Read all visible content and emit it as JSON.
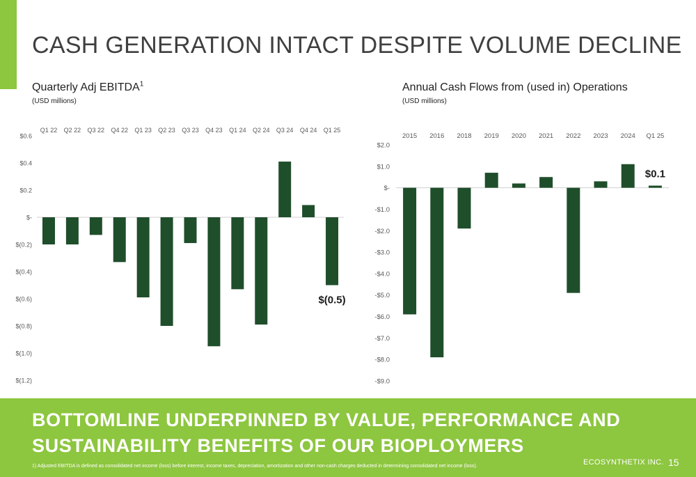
{
  "page": {
    "title": "CASH GENERATION INTACT DESPITE VOLUME DECLINE",
    "accent_color": "#8dc63f",
    "bar_color": "#1f4e2b"
  },
  "left_chart": {
    "heading": "Quarterly Adj EBITDA",
    "heading_footnote_mark": "1",
    "subheading": "(USD millions)"
  },
  "right_chart": {
    "heading": "Annual Cash Flows from (used in) Operations",
    "subheading": "(USD millions)"
  },
  "banner": {
    "line1": "BOTTOMLINE UNDERPINNED BY VALUE, PERFORMANCE AND",
    "line2": "SUSTAINABILITY BENEFITS OF OUR BIOPLOYMERS",
    "footnote": "1) Adjusted EBITDA is defined as consolidated net income (loss) before interest, income taxes, depreciation, amortization and other non-cash charges deducted in determining consolidated net income (loss).",
    "company": "ECOSYNTHETIX INC.",
    "page_number": "15"
  },
  "chart_data": [
    {
      "type": "bar",
      "title": "Quarterly Adj EBITDA",
      "subtitle": "(USD millions)",
      "categories": [
        "Q1 22",
        "Q2 22",
        "Q3 22",
        "Q4 22",
        "Q1 23",
        "Q2 23",
        "Q3 23",
        "Q4 23",
        "Q1 24",
        "Q2 24",
        "Q3 24",
        "Q4 24",
        "Q1 25"
      ],
      "values": [
        -0.2,
        -0.2,
        -0.13,
        -0.33,
        -0.59,
        -0.8,
        -0.19,
        -0.95,
        -0.53,
        -0.79,
        0.41,
        0.09,
        -0.5
      ],
      "ylim": [
        -1.2,
        0.6
      ],
      "yticks": [
        0.6,
        0.4,
        0.2,
        0,
        -0.2,
        -0.4,
        -0.6,
        -0.8,
        -1.0,
        -1.2
      ],
      "ytick_labels": [
        "$0.6",
        "$0.4",
        "$0.2",
        "$-",
        "$(0.2)",
        "$(0.4)",
        "$(0.6)",
        "$(0.8)",
        "$(1.0)",
        "$(1.2)"
      ],
      "category_labels_position": "top",
      "grid": false,
      "annotation": {
        "category": "Q1 25",
        "text": "$(0.5)"
      }
    },
    {
      "type": "bar",
      "title": "Annual Cash Flows from (used in) Operations",
      "subtitle": "(USD millions)",
      "categories": [
        "2015",
        "2016",
        "2018",
        "2019",
        "2020",
        "2021",
        "2022",
        "2023",
        "2024",
        "Q1 25"
      ],
      "values": [
        -5.9,
        -7.9,
        -1.9,
        0.7,
        0.2,
        0.5,
        -4.9,
        0.3,
        1.1,
        0.1
      ],
      "ylim": [
        -9.0,
        2.0
      ],
      "yticks": [
        2,
        1,
        0,
        -1,
        -2,
        -3,
        -4,
        -5,
        -6,
        -7,
        -8,
        -9
      ],
      "ytick_labels": [
        "$2.0",
        "$1.0",
        "$-",
        "-$1.0",
        "-$2.0",
        "-$3.0",
        "-$4.0",
        "-$5.0",
        "-$6.0",
        "-$7.0",
        "-$8.0",
        "-$9.0"
      ],
      "category_labels_position": "top",
      "grid": false,
      "annotation": {
        "category": "Q1 25",
        "text": "$0.1"
      }
    }
  ]
}
